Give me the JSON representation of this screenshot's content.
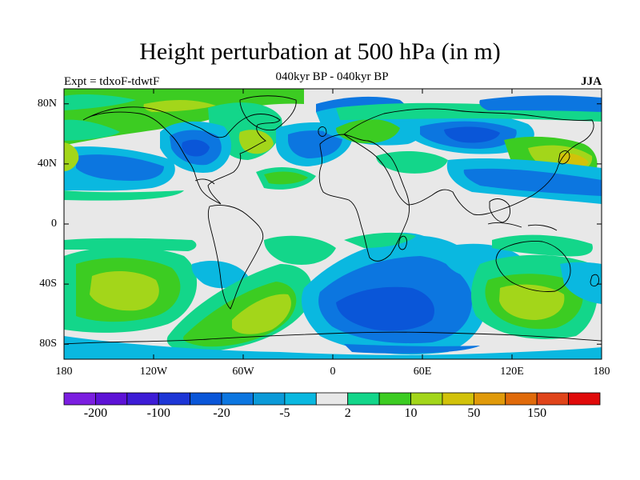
{
  "chart_data": {
    "type": "heatmap",
    "title": "Height perturbation at 500 hPa (in m)",
    "subtitle": "040kyr BP - 040kyr BP",
    "left_label": "Expt = tdxoF-tdwtF",
    "right_label": "JJA",
    "projection": "cylindrical equidistant",
    "x_range": [
      -180,
      180
    ],
    "y_range": [
      -90,
      90
    ],
    "y_ticks": [
      "80N",
      "40N",
      "0",
      "40S",
      "80S"
    ],
    "x_ticks": [
      "180",
      "120W",
      "60W",
      "0",
      "60E",
      "120E",
      "180"
    ],
    "colorbar": {
      "colors": [
        "#7b1ee0",
        "#5d12d6",
        "#3d1cd6",
        "#1d36d6",
        "#0a56d8",
        "#0c76e0",
        "#0b9ad8",
        "#0ab8e0",
        "#e8e8e8",
        "#13d68a",
        "#3ccc22",
        "#a3d61a",
        "#d2c20a",
        "#e09a0a",
        "#e06a0a",
        "#e0441a",
        "#e00a0a"
      ],
      "labels": [
        "-200",
        "-100",
        "-20",
        "-5",
        "2",
        "10",
        "50",
        "150"
      ]
    }
  },
  "colors": {
    "map_background": "#e8e8e8",
    "coastline": "#000000"
  }
}
